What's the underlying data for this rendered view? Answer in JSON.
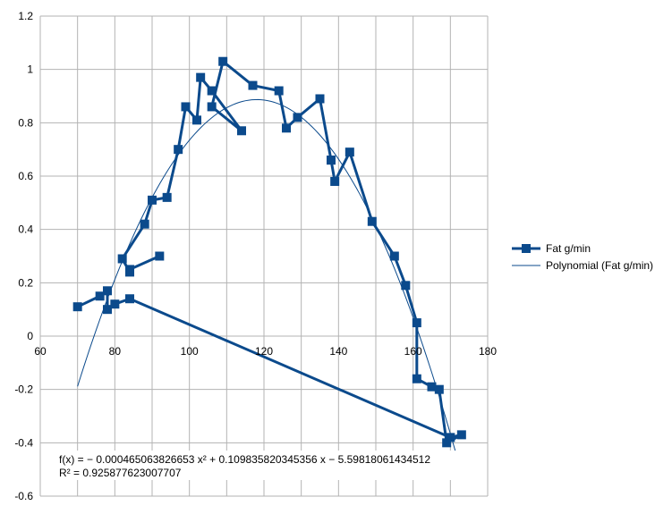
{
  "chart_data": {
    "type": "scatter",
    "title": "",
    "xlabel": "",
    "ylabel": "",
    "xlim": [
      60,
      180
    ],
    "ylim": [
      -0.6,
      1.2
    ],
    "x_ticks": [
      60,
      80,
      100,
      120,
      140,
      160,
      180
    ],
    "y_ticks": [
      -0.6,
      -0.4,
      -0.2,
      0,
      0.2,
      0.4,
      0.6,
      0.8,
      1,
      1.2
    ],
    "x_tick_labels": [
      "60",
      "80",
      "100",
      "120",
      "140",
      "160",
      "180"
    ],
    "y_tick_labels": [
      "-0.6",
      "-0.4",
      "-0.2",
      "0",
      "0.2",
      "0.4",
      "0.6",
      "0.8",
      "1",
      "1.2"
    ],
    "grid": true,
    "legend_position": "right",
    "series": [
      {
        "name": "Fat g/min",
        "color": "#0b4a8c",
        "marker": "square",
        "x": [
          92,
          84,
          84,
          82,
          88,
          90,
          94,
          97,
          99,
          102,
          103,
          106,
          114,
          106,
          109,
          117,
          124,
          126,
          129,
          135,
          138,
          138,
          139,
          143,
          149,
          155,
          158,
          161,
          161,
          165,
          167,
          169,
          173,
          170,
          84,
          80,
          78,
          78,
          76,
          70
        ],
        "y": [
          0.3,
          0.25,
          0.24,
          0.29,
          0.42,
          0.51,
          0.52,
          0.7,
          0.86,
          0.81,
          0.97,
          0.92,
          0.77,
          0.86,
          1.03,
          0.94,
          0.92,
          0.78,
          0.82,
          0.89,
          0.66,
          0.66,
          0.58,
          0.69,
          0.43,
          0.3,
          0.19,
          0.05,
          -0.16,
          -0.19,
          -0.2,
          -0.4,
          -0.37,
          -0.38,
          0.14,
          0.12,
          0.1,
          0.17,
          0.15,
          0.11
        ]
      },
      {
        "name": "Polynomial (Fat g/min)",
        "color": "#0b4a8c",
        "type": "trendline",
        "x_range": [
          70,
          172
        ],
        "coefficients": [
          -0.000465063826653,
          0.109835820345356,
          -5.59818061434512
        ]
      }
    ],
    "annotation": {
      "equation": "f(x) = − 0.000465063826653 x² + 0.109835820345356 x − 5.59818061434512",
      "r_squared": "R² = 0.925877623007707"
    }
  }
}
